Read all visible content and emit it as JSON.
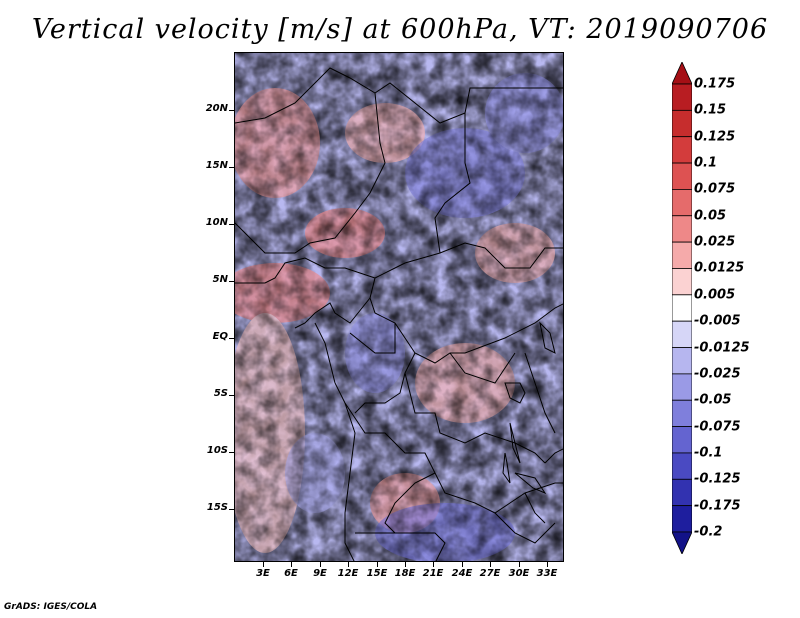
{
  "title": "Vertical velocity [m/s] at 600hPa, VT: 2019090706",
  "credit": "GrADS: IGES/COLA",
  "map": {
    "variable": "Vertical velocity",
    "units": "m/s",
    "level": "600hPa",
    "valid_time": "2019090706",
    "lat_labels": [
      "20N",
      "15N",
      "10N",
      "5N",
      "EQ",
      "5S",
      "10S",
      "15S"
    ],
    "lon_labels": [
      "3E",
      "6E",
      "9E",
      "12E",
      "15E",
      "18E",
      "21E",
      "24E",
      "27E",
      "30E",
      "33E"
    ]
  },
  "colorbar": {
    "labels": [
      "0.175",
      "0.15",
      "0.125",
      "0.1",
      "0.075",
      "0.05",
      "0.025",
      "0.0125",
      "0.005",
      "-0.005",
      "-0.0125",
      "-0.025",
      "-0.05",
      "-0.075",
      "-0.1",
      "-0.125",
      "-0.175",
      "-0.2"
    ],
    "colors": [
      "#a50f15",
      "#b81d22",
      "#c62d2d",
      "#d33c3c",
      "#dd5252",
      "#e56b6b",
      "#ee8888",
      "#f5aaaa",
      "#fbd2d2",
      "#ffffff",
      "#d6d6f7",
      "#b6b6ef",
      "#9a9ae6",
      "#7f7fdc",
      "#6464d0",
      "#4a4ac2",
      "#3232b0",
      "#1e1e9e",
      "#121288"
    ]
  }
}
